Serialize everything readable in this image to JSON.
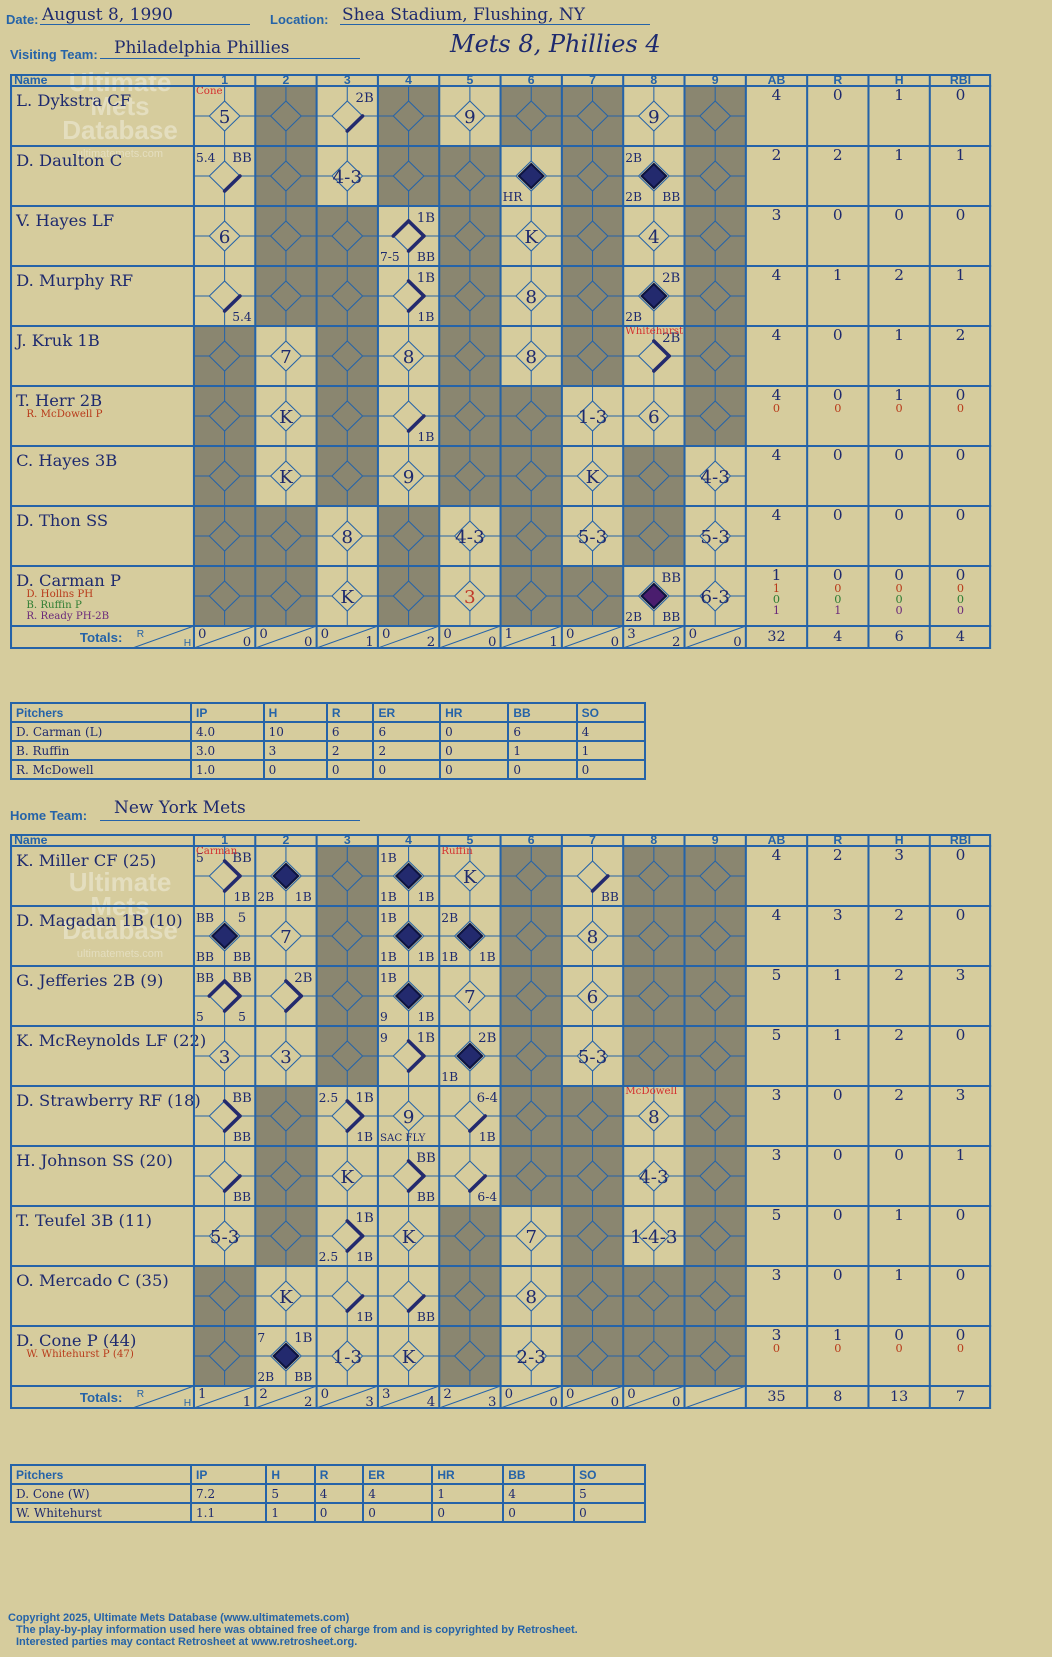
{
  "header": {
    "date_label": "Date:",
    "date": "August 8, 1990",
    "location_label": "Location:",
    "location": "Shea Stadium, Flushing, NY",
    "visiting_label": "Visiting Team:",
    "visiting_team": "Philadelphia Phillies",
    "home_label": "Home Team:",
    "home_team": "New York Mets",
    "final_score": "Mets 8, Phillies 4"
  },
  "watermark": {
    "line1": "Ultimate",
    "line2": "Mets",
    "line3": "Database",
    "url": "ultimatemets.com"
  },
  "columns": [
    "Name",
    "1",
    "2",
    "3",
    "4",
    "5",
    "6",
    "7",
    "8",
    "9",
    "AB",
    "R",
    "H",
    "RBI"
  ],
  "totals_label": "Totals:",
  "rh_labels": [
    "R",
    "H"
  ],
  "pitcher_columns": [
    "Pitchers",
    "IP",
    "H",
    "R",
    "ER",
    "HR",
    "BB",
    "SO"
  ],
  "visitors": {
    "batters": [
      {
        "name": "L. Dykstra CF",
        "subs": [],
        "stats": [
          [
            "4",
            "0",
            "1",
            "0"
          ]
        ]
      },
      {
        "name": "D. Daulton C",
        "subs": [],
        "stats": [
          [
            "2",
            "2",
            "1",
            "1"
          ]
        ]
      },
      {
        "name": "V. Hayes LF",
        "subs": [],
        "stats": [
          [
            "3",
            "0",
            "0",
            "0"
          ]
        ]
      },
      {
        "name": "D. Murphy RF",
        "subs": [],
        "stats": [
          [
            "4",
            "1",
            "2",
            "1"
          ]
        ]
      },
      {
        "name": "J. Kruk 1B",
        "subs": [],
        "stats": [
          [
            "4",
            "0",
            "1",
            "2"
          ]
        ]
      },
      {
        "name": "T. Herr 2B",
        "subs": [
          {
            "name": "R. McDowell P",
            "color": "#b83a1a"
          }
        ],
        "stats": [
          [
            "4",
            "0",
            "1",
            "0"
          ],
          [
            "0",
            "0",
            "0",
            "0"
          ]
        ]
      },
      {
        "name": "C. Hayes 3B",
        "subs": [],
        "stats": [
          [
            "4",
            "0",
            "0",
            "0"
          ]
        ]
      },
      {
        "name": "D. Thon SS",
        "subs": [],
        "stats": [
          [
            "4",
            "0",
            "0",
            "0"
          ]
        ]
      },
      {
        "name": "D. Carman P",
        "subs": [
          {
            "name": "D. Hollns PH",
            "color": "#b83a1a"
          },
          {
            "name": "B. Ruffin P",
            "color": "#2e7d32"
          },
          {
            "name": "R. Ready PH-2B",
            "color": "#6b2a7a"
          }
        ],
        "stats": [
          [
            "1",
            "0",
            "0",
            "0"
          ],
          [
            "1",
            "0",
            "0",
            "0"
          ],
          [
            "0",
            "0",
            "0",
            "0"
          ],
          [
            "1",
            "1",
            "0",
            "0"
          ]
        ]
      }
    ],
    "cells": [
      [
        {
          "c": "5",
          "note": "Cone"
        },
        {
          "g": 1
        },
        {
          "r": "2B",
          "p": 1
        },
        {
          "g": 1
        },
        {
          "c": "9"
        },
        {
          "g": 1
        },
        {
          "g": 1
        },
        {
          "c": "9"
        },
        {
          "g": 1
        }
      ],
      [
        {
          "r": "BB",
          "tl": "5.4",
          "p": 1
        },
        {
          "g": 1
        },
        {
          "c": "4-3"
        },
        {
          "g": 1
        },
        {
          "g": 1
        },
        {
          "f": 1,
          "bl": "HR"
        },
        {
          "g": 1
        },
        {
          "f": 1,
          "tl": "2B",
          "bl": "2B",
          "br": "BB"
        },
        {
          "g": 1
        }
      ],
      [
        {
          "c": "6"
        },
        {
          "g": 1
        },
        {
          "g": 1
        },
        {
          "r": "1B",
          "br": "BB",
          "bl": "7-5",
          "p": 3
        },
        {
          "g": 1
        },
        {
          "c": "K"
        },
        {
          "g": 1
        },
        {
          "c": "4"
        },
        {
          "g": 1
        }
      ],
      [
        {
          "br": "5.4",
          "p": 1
        },
        {
          "g": 1
        },
        {
          "g": 1
        },
        {
          "r": "1B",
          "br": "1B",
          "p": 2
        },
        {
          "g": 1
        },
        {
          "c": "8"
        },
        {
          "g": 1
        },
        {
          "f": 1,
          "tr": "2B",
          "bl": "2B"
        },
        {
          "g": 1
        }
      ],
      [
        {
          "g": 1
        },
        {
          "c": "7"
        },
        {
          "g": 1
        },
        {
          "c": "8"
        },
        {
          "g": 1
        },
        {
          "c": "8"
        },
        {
          "g": 1
        },
        {
          "r": "2B",
          "p": 2,
          "note": "Whitehurst"
        },
        {
          "g": 1
        }
      ],
      [
        {
          "g": 1
        },
        {
          "c": "K"
        },
        {
          "g": 1
        },
        {
          "br": "1B",
          "p": 1
        },
        {
          "g": 1
        },
        {
          "g": 1
        },
        {
          "c": "1-3"
        },
        {
          "c": "6"
        },
        {
          "g": 1
        }
      ],
      [
        {
          "g": 1
        },
        {
          "c": "K"
        },
        {
          "g": 1
        },
        {
          "c": "9"
        },
        {
          "g": 1
        },
        {
          "g": 1
        },
        {
          "c": "K"
        },
        {
          "g": 1
        },
        {
          "c": "4-3"
        }
      ],
      [
        {
          "g": 1
        },
        {
          "g": 1
        },
        {
          "c": "8"
        },
        {
          "g": 1
        },
        {
          "c": "4-3"
        },
        {
          "g": 1
        },
        {
          "c": "5-3"
        },
        {
          "g": 1
        },
        {
          "c": "5-3"
        }
      ],
      [
        {
          "g": 1
        },
        {
          "g": 1
        },
        {
          "c": "K"
        },
        {
          "g": 1
        },
        {
          "c": "3",
          "cc": "#c0392b"
        },
        {
          "g": 1
        },
        {
          "g": 1
        },
        {
          "f": 2,
          "tr": "BB",
          "bl": "2B",
          "br": "BB"
        },
        {
          "c": "6-3"
        }
      ]
    ],
    "inning_totals": [
      [
        "0",
        "0"
      ],
      [
        "0",
        "0"
      ],
      [
        "0",
        "1"
      ],
      [
        "0",
        "2"
      ],
      [
        "0",
        "0"
      ],
      [
        "1",
        "1"
      ],
      [
        "0",
        "0"
      ],
      [
        "3",
        "2"
      ],
      [
        "0",
        "0"
      ]
    ],
    "totals": [
      "32",
      "4",
      "6",
      "4"
    ],
    "pitchers": [
      [
        "D. Carman (L)",
        "4.0",
        "10",
        "6",
        "6",
        "0",
        "6",
        "4"
      ],
      [
        "B. Ruffin",
        "3.0",
        "3",
        "2",
        "2",
        "0",
        "1",
        "1"
      ],
      [
        "R. McDowell",
        "1.0",
        "0",
        "0",
        "0",
        "0",
        "0",
        "0"
      ]
    ]
  },
  "home": {
    "batters": [
      {
        "name": "K. Miller CF (25)",
        "subs": [],
        "stats": [
          [
            "4",
            "2",
            "3",
            "0"
          ]
        ]
      },
      {
        "name": "D. Magadan 1B (10)",
        "subs": [],
        "stats": [
          [
            "4",
            "3",
            "2",
            "0"
          ]
        ]
      },
      {
        "name": "G. Jefferies 2B (9)",
        "subs": [],
        "stats": [
          [
            "5",
            "1",
            "2",
            "3"
          ]
        ]
      },
      {
        "name": "K. McReynolds LF (22)",
        "subs": [],
        "stats": [
          [
            "5",
            "1",
            "2",
            "0"
          ]
        ]
      },
      {
        "name": "D. Strawberry RF (18)",
        "subs": [],
        "stats": [
          [
            "3",
            "0",
            "2",
            "3"
          ]
        ]
      },
      {
        "name": "H. Johnson SS (20)",
        "subs": [],
        "stats": [
          [
            "3",
            "0",
            "0",
            "1"
          ]
        ]
      },
      {
        "name": "T. Teufel 3B (11)",
        "subs": [],
        "stats": [
          [
            "5",
            "0",
            "1",
            "0"
          ]
        ]
      },
      {
        "name": "O. Mercado C (35)",
        "subs": [],
        "stats": [
          [
            "3",
            "0",
            "1",
            "0"
          ]
        ]
      },
      {
        "name": "D. Cone P (44)",
        "subs": [
          {
            "name": "W. Whitehurst P (47)",
            "color": "#b83a1a"
          }
        ],
        "stats": [
          [
            "3",
            "1",
            "0",
            "0"
          ],
          [
            "0",
            "0",
            "0",
            "0"
          ]
        ]
      }
    ],
    "cells": [
      [
        {
          "r": "BB",
          "tl": "5",
          "br": "1B",
          "p": 2,
          "note": "Carman"
        },
        {
          "f": 1,
          "bl": "2B",
          "br": "1B"
        },
        {
          "g": 1
        },
        {
          "f": 1,
          "tl": "1B",
          "bl": "1B",
          "br": "1B"
        },
        {
          "c": "K",
          "note": "Ruffin"
        },
        {
          "g": 1
        },
        {
          "br": "BB",
          "p": 1
        },
        {
          "g": 1
        },
        {
          "g": 1
        }
      ],
      [
        {
          "f": 1,
          "tl": "BB",
          "tr": "5",
          "bl": "BB",
          "br": "BB"
        },
        {
          "c": "7"
        },
        {
          "g": 1
        },
        {
          "f": 1,
          "tl": "1B",
          "bl": "1B",
          "br": "1B"
        },
        {
          "f": 1,
          "tl": "2B",
          "bl": "1B",
          "br": "1B"
        },
        {
          "g": 1
        },
        {
          "c": "8"
        },
        {
          "g": 1
        },
        {
          "g": 1
        }
      ],
      [
        {
          "tl": "BB",
          "tr": "BB",
          "bl": "5",
          "br": "5",
          "p": 3
        },
        {
          "r": "2B",
          "p": 2
        },
        {
          "g": 1
        },
        {
          "f": 1,
          "tl": "1B",
          "bl": "9",
          "br": "1B"
        },
        {
          "c": "7"
        },
        {
          "g": 1
        },
        {
          "c": "6"
        },
        {
          "g": 1
        },
        {
          "g": 1
        }
      ],
      [
        {
          "c": "3"
        },
        {
          "c": "3"
        },
        {
          "g": 1
        },
        {
          "r": "1B",
          "tl": "9",
          "p": 2
        },
        {
          "f": 1,
          "tr": "2B",
          "bl": "1B"
        },
        {
          "g": 1
        },
        {
          "c": "5-3"
        },
        {
          "g": 1
        },
        {
          "g": 1
        }
      ],
      [
        {
          "r": "BB",
          "br": "BB",
          "p": 2
        },
        {
          "g": 1
        },
        {
          "r": "1B",
          "tl": "2.5",
          "br": "1B",
          "p": 2
        },
        {
          "c": "9",
          "bl": "SAC FLY"
        },
        {
          "r": "6-4",
          "br": "1B",
          "p": 1
        },
        {
          "g": 1
        },
        {
          "g": 1
        },
        {
          "c": "8",
          "note": "McDowell"
        },
        {
          "g": 1
        }
      ],
      [
        {
          "br": "BB",
          "p": 1
        },
        {
          "g": 1
        },
        {
          "c": "K"
        },
        {
          "r": "BB",
          "br": "BB",
          "p": 2
        },
        {
          "br": "6-4",
          "p": 1
        },
        {
          "g": 1
        },
        {
          "g": 1
        },
        {
          "c": "4-3"
        },
        {
          "g": 1
        }
      ],
      [
        {
          "c": "5-3"
        },
        {
          "g": 1
        },
        {
          "r": "1B",
          "bl": "2.5",
          "br": "1B",
          "p": 2
        },
        {
          "c": "K"
        },
        {
          "g": 1
        },
        {
          "c": "7"
        },
        {
          "g": 1
        },
        {
          "c": "1-4-3"
        },
        {
          "g": 1
        }
      ],
      [
        {
          "g": 1
        },
        {
          "c": "K"
        },
        {
          "br": "1B",
          "p": 1
        },
        {
          "br": "BB",
          "p": 1
        },
        {
          "g": 1
        },
        {
          "c": "8"
        },
        {
          "g": 1
        },
        {
          "g": 1
        },
        {
          "g": 1
        }
      ],
      [
        {
          "g": 1
        },
        {
          "f": 1,
          "tl": "7",
          "tr": "1B",
          "bl": "2B",
          "br": "BB"
        },
        {
          "c": "1-3"
        },
        {
          "c": "K"
        },
        {
          "g": 1
        },
        {
          "c": "2-3"
        },
        {
          "g": 1
        },
        {
          "g": 1
        },
        {
          "g": 1
        }
      ]
    ],
    "inning_totals": [
      [
        "1",
        "1"
      ],
      [
        "2",
        "2"
      ],
      [
        "0",
        "3"
      ],
      [
        "3",
        "4"
      ],
      [
        "2",
        "3"
      ],
      [
        "0",
        "0"
      ],
      [
        "0",
        "0"
      ],
      [
        "0",
        "0"
      ],
      [
        "",
        ""
      ]
    ],
    "totals": [
      "35",
      "8",
      "13",
      "7"
    ],
    "pitchers": [
      [
        "D. Cone (W)",
        "7.2",
        "5",
        "4",
        "4",
        "1",
        "4",
        "5"
      ],
      [
        "W. Whitehurst",
        "1.1",
        "1",
        "0",
        "0",
        "0",
        "0",
        "0"
      ]
    ]
  },
  "footer": {
    "line1": "Copyright 2025, Ultimate Mets Database (www.ultimatemets.com)",
    "line2": "The play-by-play information used here was obtained free of charge from and is copyrighted by Retrosheet.",
    "line3": "Interested parties may contact Retrosheet at www.retrosheet.org."
  },
  "colors": {
    "accent": "#2563a8",
    "ink": "#1e2a6e",
    "gray_cell": "#8a8670",
    "run_fill": "#232a6e",
    "run_fill_alt": "#4a1d6e",
    "background": "#d6cc9d"
  }
}
